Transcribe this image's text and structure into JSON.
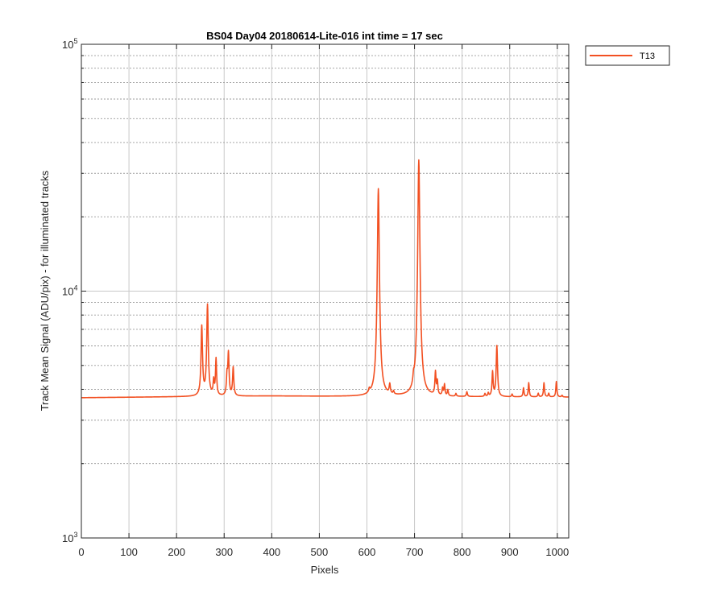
{
  "chart_data": {
    "type": "line",
    "title": "BS04 Day04 20180614-Lite-016 int time = 17 sec",
    "xlabel": "Pixels",
    "ylabel": "Track Mean Signal (ADU/pix) - for illuminated tracks",
    "xlim": [
      0,
      1024
    ],
    "ylim": [
      1000,
      100000
    ],
    "yscale": "log",
    "grid": true,
    "legend_position": "outside-top-right",
    "x_ticks": [
      "0",
      "100",
      "200",
      "300",
      "400",
      "500",
      "600",
      "700",
      "800",
      "900",
      "1000"
    ],
    "y_ticks": [
      {
        "base": "10",
        "exp": "3"
      },
      {
        "base": "10",
        "exp": "4"
      },
      {
        "base": "10",
        "exp": "5"
      }
    ],
    "series": [
      {
        "name": "T13",
        "color": "#f25022",
        "baseline": [
          [
            0,
            3700
          ],
          [
            250,
            3740
          ],
          [
            400,
            3760
          ],
          [
            600,
            3740
          ],
          [
            1024,
            3720
          ]
        ],
        "peaks": [
          {
            "x": 253,
            "y": 7200,
            "w": 1.6
          },
          {
            "x": 265,
            "y": 8800,
            "w": 1.6
          },
          {
            "x": 278,
            "y": 4300,
            "w": 1.3
          },
          {
            "x": 283,
            "y": 5300,
            "w": 1.3
          },
          {
            "x": 306,
            "y": 4500,
            "w": 1.3
          },
          {
            "x": 309,
            "y": 5600,
            "w": 1.4
          },
          {
            "x": 319,
            "y": 4900,
            "w": 1.4
          },
          {
            "x": 605,
            "y": 3880,
            "w": 1.5
          },
          {
            "x": 624,
            "y": 26000,
            "w": 1.8
          },
          {
            "x": 648,
            "y": 4100,
            "w": 1.4
          },
          {
            "x": 656,
            "y": 3850,
            "w": 1.2
          },
          {
            "x": 698,
            "y": 4050,
            "w": 1.4
          },
          {
            "x": 709,
            "y": 34000,
            "w": 1.8
          },
          {
            "x": 744,
            "y": 4650,
            "w": 1.3
          },
          {
            "x": 748,
            "y": 4250,
            "w": 1.2
          },
          {
            "x": 759,
            "y": 4000,
            "w": 1.2
          },
          {
            "x": 763,
            "y": 4150,
            "w": 1.2
          },
          {
            "x": 770,
            "y": 3950,
            "w": 1.2
          },
          {
            "x": 787,
            "y": 3830,
            "w": 1.2
          },
          {
            "x": 810,
            "y": 3900,
            "w": 1.3
          },
          {
            "x": 848,
            "y": 3830,
            "w": 1.2
          },
          {
            "x": 855,
            "y": 3850,
            "w": 1.2
          },
          {
            "x": 864,
            "y": 4700,
            "w": 1.3
          },
          {
            "x": 873,
            "y": 6000,
            "w": 1.5
          },
          {
            "x": 905,
            "y": 3820,
            "w": 1.2
          },
          {
            "x": 929,
            "y": 4050,
            "w": 1.2
          },
          {
            "x": 940,
            "y": 4250,
            "w": 1.2
          },
          {
            "x": 960,
            "y": 3850,
            "w": 1.2
          },
          {
            "x": 972,
            "y": 4250,
            "w": 1.2
          },
          {
            "x": 982,
            "y": 3850,
            "w": 1.2
          },
          {
            "x": 998,
            "y": 4300,
            "w": 1.2
          },
          {
            "x": 1010,
            "y": 3780,
            "w": 1.2
          }
        ]
      }
    ]
  }
}
